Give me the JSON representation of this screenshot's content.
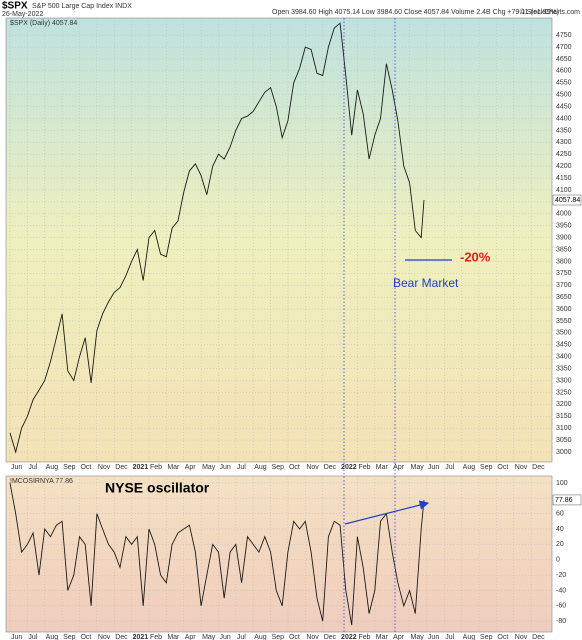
{
  "header": {
    "symbol": "$SPX",
    "name": "S&P 500 Large Cap Index INDX",
    "date": "26-May-2022",
    "quote": "Open 3984.60  High 4075.14  Low 3984.60  Close 4057.84  Volume 2.4B  Chg +79.11 (+1.99%)",
    "credit": "© StockCharts.com"
  },
  "chart_data": [
    {
      "type": "line",
      "label": "$SPX (Daily) 4057.84",
      "color": "#1a1a1a",
      "grid": true,
      "annotations": [
        "-20%",
        "Bear Market"
      ],
      "x": [
        0,
        0.33,
        0.67,
        1,
        1.33,
        1.67,
        2,
        2.33,
        2.67,
        3,
        3.33,
        3.67,
        4,
        4.33,
        4.67,
        5,
        5.33,
        5.67,
        6,
        6.33,
        6.67,
        7,
        7.33,
        7.67,
        8,
        8.33,
        8.67,
        9,
        9.33,
        9.67,
        10,
        10.33,
        10.67,
        11,
        11.33,
        11.67,
        12,
        12.33,
        12.67,
        13,
        13.33,
        13.67,
        14,
        14.33,
        14.67,
        15,
        15.33,
        15.67,
        16,
        16.33,
        16.67,
        17,
        17.33,
        17.67,
        18,
        18.33,
        18.67,
        19,
        19.33,
        19.67,
        20,
        20.33,
        20.67,
        21,
        21.33,
        21.67,
        22,
        22.33,
        22.67,
        23,
        23.33,
        23.67,
        23.83
      ],
      "values": [
        3080,
        3000,
        3100,
        3150,
        3220,
        3260,
        3300,
        3380,
        3480,
        3580,
        3340,
        3300,
        3400,
        3480,
        3290,
        3510,
        3580,
        3630,
        3670,
        3690,
        3740,
        3800,
        3850,
        3720,
        3900,
        3930,
        3830,
        3820,
        3940,
        3970,
        4090,
        4180,
        4210,
        4160,
        4080,
        4200,
        4250,
        4230,
        4280,
        4350,
        4400,
        4410,
        4430,
        4470,
        4510,
        4530,
        4450,
        4320,
        4390,
        4550,
        4610,
        4700,
        4690,
        4590,
        4580,
        4700,
        4780,
        4800,
        4580,
        4330,
        4520,
        4420,
        4230,
        4330,
        4400,
        4630,
        4520,
        4390,
        4200,
        4130,
        3930,
        3900,
        4057.84
      ],
      "xlim": [
        -0.23,
        31.2
      ],
      "ylim": [
        2958,
        4822
      ],
      "xticks": [
        {
          "value": 0,
          "label": "Jun"
        },
        {
          "value": 1,
          "label": "Jul"
        },
        {
          "value": 2,
          "label": "Aug"
        },
        {
          "value": 3,
          "label": "Sep"
        },
        {
          "value": 4,
          "label": "Oct"
        },
        {
          "value": 5,
          "label": "Nov"
        },
        {
          "value": 6,
          "label": "Dec"
        },
        {
          "value": 7,
          "label": "2021"
        },
        {
          "value": 8,
          "label": "Feb"
        },
        {
          "value": 9,
          "label": "Mar"
        },
        {
          "value": 10,
          "label": "Apr"
        },
        {
          "value": 11,
          "label": "May"
        },
        {
          "value": 12,
          "label": "Jun"
        },
        {
          "value": 13,
          "label": "Jul"
        },
        {
          "value": 14,
          "label": "Aug"
        },
        {
          "value": 15,
          "label": "Sep"
        },
        {
          "value": 16,
          "label": "Oct"
        },
        {
          "value": 17,
          "label": "Nov"
        },
        {
          "value": 18,
          "label": "Dec"
        },
        {
          "value": 19,
          "label": "2022"
        },
        {
          "value": 20,
          "label": "Feb"
        },
        {
          "value": 21,
          "label": "Mar"
        },
        {
          "value": 22,
          "label": "Apr"
        },
        {
          "value": 23,
          "label": "May"
        },
        {
          "value": 24,
          "label": "Jun"
        },
        {
          "value": 25,
          "label": "Jul"
        },
        {
          "value": 26,
          "label": "Aug"
        },
        {
          "value": 27,
          "label": "Sep"
        },
        {
          "value": 28,
          "label": "Oct"
        },
        {
          "value": 29,
          "label": "Nov"
        },
        {
          "value": 30,
          "label": "Dec"
        }
      ],
      "yticks": [
        3000,
        3050,
        3100,
        3150,
        3200,
        3250,
        3300,
        3350,
        3400,
        3450,
        3500,
        3550,
        3600,
        3650,
        3700,
        3750,
        3800,
        3850,
        3900,
        3950,
        4000,
        4050,
        4100,
        4150,
        4200,
        4250,
        4300,
        4350,
        4400,
        4450,
        4500,
        4550,
        4600,
        4650,
        4700,
        4750
      ]
    },
    {
      "type": "line",
      "label": "!MCOSIRNYA 77.86",
      "annotation": "NYSE oscillator",
      "color": "#1a1a1a",
      "grid": true,
      "x": [
        0,
        0.33,
        0.67,
        1,
        1.33,
        1.67,
        2,
        2.33,
        2.67,
        3,
        3.33,
        3.67,
        4,
        4.33,
        4.67,
        5,
        5.33,
        5.67,
        6,
        6.33,
        6.67,
        7,
        7.33,
        7.67,
        8,
        8.33,
        8.67,
        9,
        9.33,
        9.67,
        10,
        10.33,
        10.67,
        11,
        11.33,
        11.67,
        12,
        12.33,
        12.67,
        13,
        13.33,
        13.67,
        14,
        14.33,
        14.67,
        15,
        15.33,
        15.67,
        16,
        16.33,
        16.67,
        17,
        17.33,
        17.67,
        18,
        18.33,
        18.67,
        19,
        19.33,
        19.67,
        20,
        20.33,
        20.67,
        21,
        21.33,
        21.67,
        22,
        22.33,
        22.67,
        23,
        23.33,
        23.67,
        23.83
      ],
      "values": [
        100,
        60,
        10,
        20,
        35,
        -20,
        40,
        30,
        45,
        50,
        -40,
        -20,
        30,
        20,
        -60,
        60,
        40,
        20,
        10,
        -10,
        30,
        20,
        30,
        -60,
        40,
        20,
        -20,
        -30,
        20,
        35,
        40,
        45,
        10,
        -60,
        -20,
        20,
        10,
        -50,
        10,
        20,
        -30,
        30,
        20,
        10,
        30,
        10,
        -40,
        -60,
        10,
        50,
        40,
        50,
        10,
        -50,
        -80,
        30,
        50,
        45,
        -40,
        -85,
        30,
        -10,
        -70,
        -40,
        50,
        60,
        10,
        -30,
        -60,
        -40,
        -70,
        40,
        77.86
      ],
      "xlim": [
        -0.23,
        31.2
      ],
      "ylim": [
        -94,
        109
      ],
      "xticks": [
        {
          "value": 0,
          "label": "Jun"
        },
        {
          "value": 1,
          "label": "Jul"
        },
        {
          "value": 2,
          "label": "Aug"
        },
        {
          "value": 3,
          "label": "Sep"
        },
        {
          "value": 4,
          "label": "Oct"
        },
        {
          "value": 5,
          "label": "Nov"
        },
        {
          "value": 6,
          "label": "Dec"
        },
        {
          "value": 7,
          "label": "2021"
        },
        {
          "value": 8,
          "label": "Feb"
        },
        {
          "value": 9,
          "label": "Mar"
        },
        {
          "value": 10,
          "label": "Apr"
        },
        {
          "value": 11,
          "label": "May"
        },
        {
          "value": 12,
          "label": "Jun"
        },
        {
          "value": 13,
          "label": "Jul"
        },
        {
          "value": 14,
          "label": "Aug"
        },
        {
          "value": 15,
          "label": "Sep"
        },
        {
          "value": 16,
          "label": "Oct"
        },
        {
          "value": 17,
          "label": "Nov"
        },
        {
          "value": 18,
          "label": "Dec"
        },
        {
          "value": 19,
          "label": "2022"
        },
        {
          "value": 20,
          "label": "Feb"
        },
        {
          "value": 21,
          "label": "Mar"
        },
        {
          "value": 22,
          "label": "Apr"
        },
        {
          "value": 23,
          "label": "May"
        },
        {
          "value": 24,
          "label": "Jun"
        },
        {
          "value": 25,
          "label": "Jul"
        },
        {
          "value": 26,
          "label": "Aug"
        },
        {
          "value": 27,
          "label": "Sep"
        },
        {
          "value": 28,
          "label": "Oct"
        },
        {
          "value": 29,
          "label": "Nov"
        },
        {
          "value": 30,
          "label": "Dec"
        }
      ],
      "yticks": [
        -80,
        -60,
        -40,
        -20,
        0,
        20,
        40,
        60,
        80,
        100
      ]
    }
  ]
}
